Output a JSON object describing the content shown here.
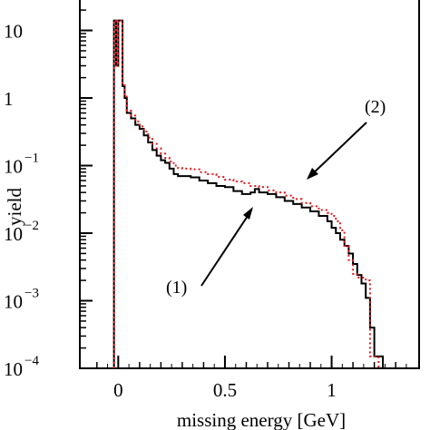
{
  "chart_data": {
    "type": "line",
    "xlabel": "missing energy [GeV]",
    "ylabel": "yield",
    "xlim": [
      -0.18,
      1.41
    ],
    "ylim": [
      0.0001,
      30
    ],
    "yscale": "log",
    "grid": false,
    "x_ticks": [
      "0",
      "0.5",
      "1"
    ],
    "y_ticks": [
      {
        "base": "10",
        "exp": "",
        "value": 10
      },
      {
        "base": "1",
        "exp": "",
        "value": 1
      },
      {
        "base": "10",
        "exp": "−1",
        "value": 0.1
      },
      {
        "base": "10",
        "exp": "−2",
        "value": 0.01
      },
      {
        "base": "10",
        "exp": "−3",
        "value": 0.001
      },
      {
        "base": "10",
        "exp": "−4",
        "value": 0.0001
      }
    ],
    "series": [
      {
        "name": "(1)",
        "color": "#000000",
        "style": "solid",
        "x": [
          -0.02,
          -0.01,
          0.0,
          0.01,
          0.02,
          0.03,
          0.04,
          0.06,
          0.08,
          0.1,
          0.12,
          0.14,
          0.16,
          0.18,
          0.2,
          0.22,
          0.24,
          0.26,
          0.28,
          0.3,
          0.34,
          0.38,
          0.42,
          0.46,
          0.5,
          0.54,
          0.58,
          0.62,
          0.64,
          0.66,
          0.7,
          0.74,
          0.78,
          0.82,
          0.86,
          0.9,
          0.94,
          0.98,
          1.0,
          1.02,
          1.04,
          1.06,
          1.08,
          1.1,
          1.12,
          1.14,
          1.16,
          1.18,
          1.2,
          1.22
        ],
        "y": [
          14,
          3.0,
          14,
          14,
          1.5,
          1.0,
          0.6,
          0.5,
          0.4,
          0.35,
          0.28,
          0.22,
          0.17,
          0.14,
          0.12,
          0.11,
          0.09,
          0.075,
          0.07,
          0.07,
          0.067,
          0.06,
          0.055,
          0.05,
          0.048,
          0.042,
          0.038,
          0.04,
          0.045,
          0.04,
          0.038,
          0.034,
          0.03,
          0.027,
          0.024,
          0.021,
          0.018,
          0.015,
          0.012,
          0.01,
          0.008,
          0.0065,
          0.005,
          0.0035,
          0.0024,
          0.0018,
          0.0011,
          0.0004,
          0.00015,
          0.00015
        ]
      },
      {
        "name": "(2)",
        "color": "#e41a1c",
        "style": "dotted",
        "x": [
          -0.02,
          -0.01,
          0.0,
          0.01,
          0.02,
          0.03,
          0.04,
          0.06,
          0.08,
          0.1,
          0.12,
          0.14,
          0.16,
          0.18,
          0.2,
          0.22,
          0.24,
          0.26,
          0.28,
          0.3,
          0.34,
          0.38,
          0.42,
          0.46,
          0.5,
          0.54,
          0.58,
          0.62,
          0.66,
          0.7,
          0.74,
          0.78,
          0.82,
          0.86,
          0.9,
          0.94,
          0.98,
          1.0,
          1.02,
          1.04,
          1.06,
          1.08,
          1.1,
          1.12,
          1.14,
          1.16,
          1.18,
          1.2
        ],
        "y": [
          14,
          3.0,
          14,
          14,
          1.6,
          1.05,
          0.65,
          0.55,
          0.45,
          0.38,
          0.32,
          0.26,
          0.21,
          0.18,
          0.15,
          0.13,
          0.115,
          0.1,
          0.092,
          0.09,
          0.088,
          0.08,
          0.075,
          0.068,
          0.062,
          0.058,
          0.055,
          0.05,
          0.048,
          0.043,
          0.04,
          0.036,
          0.032,
          0.028,
          0.025,
          0.022,
          0.02,
          0.018,
          0.015,
          0.011,
          0.0065,
          0.004,
          0.0025,
          0.0022,
          0.0022,
          0.002,
          0.00015,
          0.00015
        ]
      }
    ],
    "annotations": [
      {
        "text": "(2)",
        "target_series": "(2)"
      },
      {
        "text": "(1)",
        "target_series": "(1)"
      }
    ]
  }
}
